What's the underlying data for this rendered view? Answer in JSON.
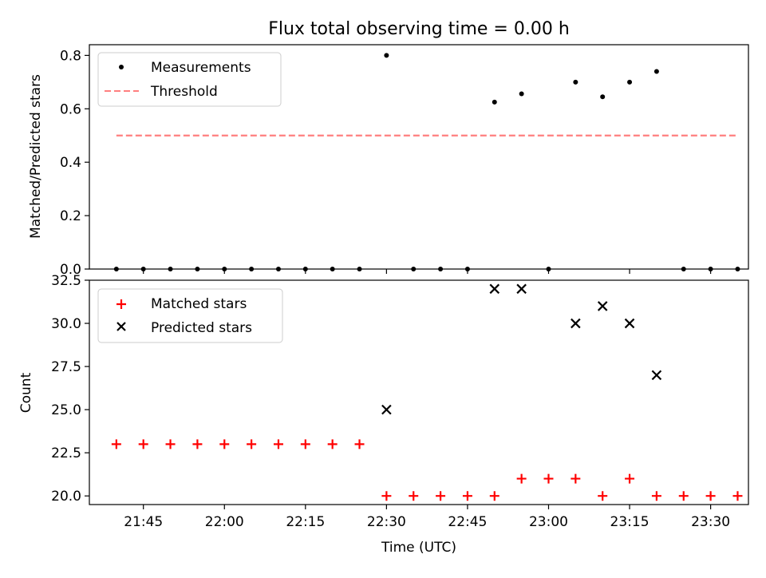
{
  "figure": {
    "title": "Flux total observing time = 0.00 h",
    "xlabel": "Time (UTC)"
  },
  "chart_data": [
    {
      "type": "scatter",
      "ylabel": "Matched/Predicted stars",
      "ylim": [
        0,
        0.84
      ],
      "yticks": [
        "0.0",
        "0.2",
        "0.4",
        "0.6",
        "0.8"
      ],
      "ytick_values": [
        0,
        0.2,
        0.4,
        0.6,
        0.8
      ],
      "xlim": [
        "21:35",
        "23:37"
      ],
      "legend_position": "upper-left",
      "series": [
        {
          "name": "Measurements",
          "marker": "dot",
          "color": "#000000",
          "x": [
            "21:40",
            "21:45",
            "21:50",
            "21:55",
            "22:00",
            "22:05",
            "22:10",
            "22:15",
            "22:20",
            "22:25",
            "22:30",
            "22:35",
            "22:40",
            "22:45",
            "22:50",
            "22:55",
            "23:00",
            "23:05",
            "23:10",
            "23:15",
            "23:20",
            "23:25",
            "23:30",
            "23:35"
          ],
          "y": [
            0,
            0,
            0,
            0,
            0,
            0,
            0,
            0,
            0,
            0,
            0.8,
            0,
            0,
            0,
            0.625,
            0.656,
            0,
            0.7,
            0.645,
            0.7,
            0.74,
            0,
            0,
            0
          ]
        },
        {
          "name": "Threshold",
          "marker": "dashed-line",
          "color": "#ff7f7f",
          "x": [
            "21:40",
            "23:35"
          ],
          "y": [
            0.5,
            0.5
          ]
        }
      ]
    },
    {
      "type": "scatter",
      "ylabel": "Count",
      "ylim": [
        19.5,
        32.5
      ],
      "yticks": [
        "20.0",
        "22.5",
        "25.0",
        "27.5",
        "30.0",
        "32.5"
      ],
      "ytick_values": [
        20,
        22.5,
        25,
        27.5,
        30,
        32.5
      ],
      "xlim": [
        "21:35",
        "23:37"
      ],
      "xticks": [
        "21:45",
        "22:00",
        "22:15",
        "22:30",
        "22:45",
        "23:00",
        "23:15",
        "23:30"
      ],
      "legend_position": "upper-left",
      "series": [
        {
          "name": "Matched stars",
          "marker": "plus",
          "color": "#ff0000",
          "x": [
            "21:40",
            "21:45",
            "21:50",
            "21:55",
            "22:00",
            "22:05",
            "22:10",
            "22:15",
            "22:20",
            "22:25",
            "22:30",
            "22:35",
            "22:40",
            "22:45",
            "22:50",
            "22:55",
            "23:00",
            "23:05",
            "23:10",
            "23:15",
            "23:20",
            "23:25",
            "23:30",
            "23:35"
          ],
          "y": [
            23,
            23,
            23,
            23,
            23,
            23,
            23,
            23,
            23,
            23,
            20,
            20,
            20,
            20,
            20,
            21,
            21,
            21,
            20,
            21,
            20,
            20,
            20,
            20
          ]
        },
        {
          "name": "Predicted stars",
          "marker": "x",
          "color": "#000000",
          "x": [
            "22:30",
            "22:50",
            "22:55",
            "23:05",
            "23:10",
            "23:15",
            "23:20"
          ],
          "y": [
            25,
            32,
            32,
            30,
            31,
            30,
            27
          ]
        }
      ]
    }
  ]
}
